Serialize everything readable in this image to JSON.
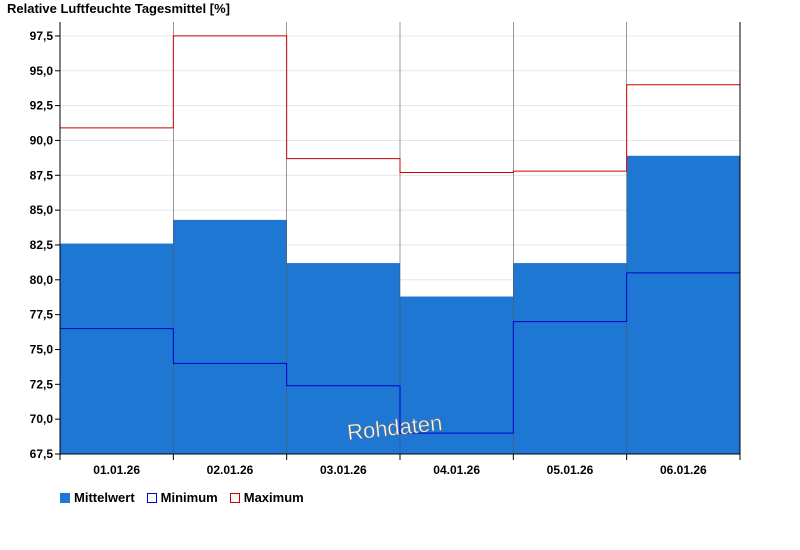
{
  "chart_data": {
    "type": "bar",
    "title": "Relative Luftfeuchte Tagesmittel [%]",
    "categories": [
      "01.01.26",
      "02.01.26",
      "03.01.26",
      "04.01.26",
      "05.01.26",
      "06.01.26"
    ],
    "ylim": [
      67.5,
      98.5
    ],
    "yticks": [
      "67,5",
      "70,0",
      "72,5",
      "75,0",
      "77,5",
      "80,0",
      "82,5",
      "85,0",
      "87,5",
      "90,0",
      "92,5",
      "95,0",
      "97,5"
    ],
    "grid": true,
    "legend_position": "bottom-left",
    "series": [
      {
        "name": "Mittelwert",
        "values": [
          82.6,
          84.3,
          81.2,
          78.8,
          81.2,
          88.9
        ],
        "color": "#1e77d3"
      },
      {
        "name": "Minimum",
        "values": [
          76.5,
          74.0,
          72.4,
          69.0,
          77.0,
          80.5
        ],
        "color": "#0000cc"
      },
      {
        "name": "Maximum",
        "values": [
          90.9,
          97.5,
          88.7,
          87.7,
          87.8,
          94.0
        ],
        "color": "#cc0000"
      }
    ],
    "watermark": "Rohdaten"
  }
}
